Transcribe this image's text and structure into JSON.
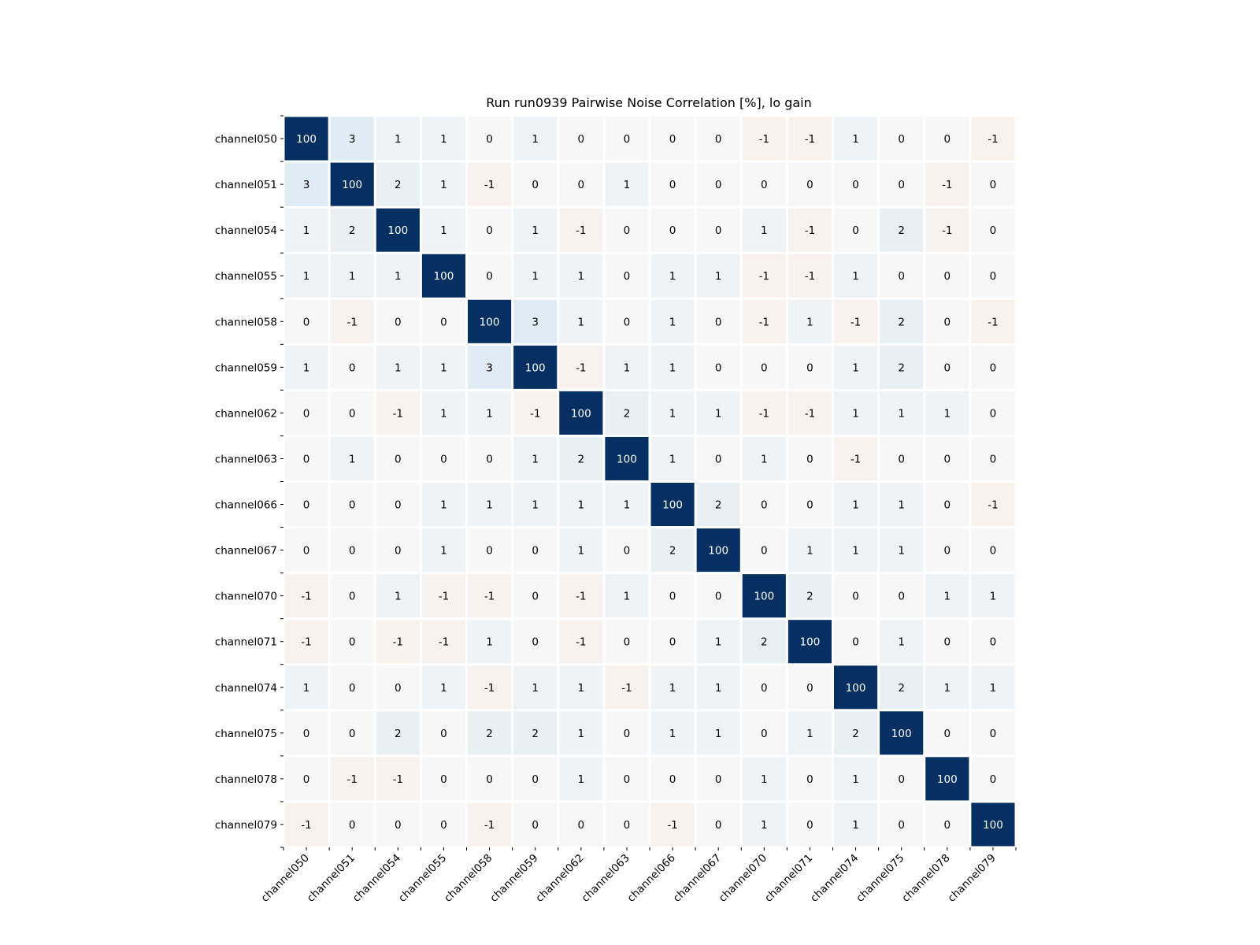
{
  "chart_data": {
    "type": "heatmap",
    "title": "Run run0939 Pairwise Noise Correlation [%], lo gain",
    "xlabel": "",
    "ylabel": "",
    "labels": [
      "channel050",
      "channel051",
      "channel054",
      "channel055",
      "channel058",
      "channel059",
      "channel062",
      "channel063",
      "channel066",
      "channel067",
      "channel070",
      "channel071",
      "channel074",
      "channel075",
      "channel078",
      "channel079"
    ],
    "values": [
      [
        100,
        3,
        1,
        1,
        0,
        1,
        0,
        0,
        0,
        0,
        -1,
        -1,
        1,
        0,
        0,
        -1
      ],
      [
        3,
        100,
        2,
        1,
        -1,
        0,
        0,
        1,
        0,
        0,
        0,
        0,
        0,
        0,
        -1,
        0
      ],
      [
        1,
        2,
        100,
        1,
        0,
        1,
        -1,
        0,
        0,
        0,
        1,
        -1,
        0,
        2,
        -1,
        0
      ],
      [
        1,
        1,
        1,
        100,
        0,
        1,
        1,
        0,
        1,
        1,
        -1,
        -1,
        1,
        0,
        0,
        0
      ],
      [
        0,
        -1,
        0,
        0,
        100,
        3,
        1,
        0,
        1,
        0,
        -1,
        1,
        -1,
        2,
        0,
        -1
      ],
      [
        1,
        0,
        1,
        1,
        3,
        100,
        -1,
        1,
        1,
        0,
        0,
        0,
        1,
        2,
        0,
        0
      ],
      [
        0,
        0,
        -1,
        1,
        1,
        -1,
        100,
        2,
        1,
        1,
        -1,
        -1,
        1,
        1,
        1,
        0
      ],
      [
        0,
        1,
        0,
        0,
        0,
        1,
        2,
        100,
        1,
        0,
        1,
        0,
        -1,
        0,
        0,
        0
      ],
      [
        0,
        0,
        0,
        1,
        1,
        1,
        1,
        1,
        100,
        2,
        0,
        0,
        1,
        1,
        0,
        -1
      ],
      [
        0,
        0,
        0,
        1,
        0,
        0,
        1,
        0,
        2,
        100,
        0,
        1,
        1,
        1,
        0,
        0
      ],
      [
        -1,
        0,
        1,
        -1,
        -1,
        0,
        -1,
        1,
        0,
        0,
        100,
        2,
        0,
        0,
        1,
        1
      ],
      [
        -1,
        0,
        -1,
        -1,
        1,
        0,
        -1,
        0,
        0,
        1,
        2,
        100,
        0,
        1,
        0,
        0
      ],
      [
        1,
        0,
        0,
        1,
        -1,
        1,
        1,
        -1,
        1,
        1,
        0,
        0,
        100,
        2,
        1,
        1
      ],
      [
        0,
        0,
        2,
        0,
        2,
        2,
        1,
        0,
        1,
        1,
        0,
        1,
        2,
        100,
        0,
        0
      ],
      [
        0,
        -1,
        -1,
        0,
        0,
        0,
        1,
        0,
        0,
        0,
        1,
        0,
        1,
        0,
        100,
        0
      ],
      [
        -1,
        0,
        0,
        0,
        -1,
        0,
        0,
        0,
        -1,
        0,
        1,
        0,
        1,
        0,
        0,
        100
      ]
    ],
    "colormap": "RdBu",
    "vmin": -100,
    "vmax": 100,
    "colors": {
      "diagonal": "#053061",
      "neutral": "#f7f7f7",
      "cell_border": "#ffffff"
    },
    "grid": false,
    "legend": "none"
  }
}
